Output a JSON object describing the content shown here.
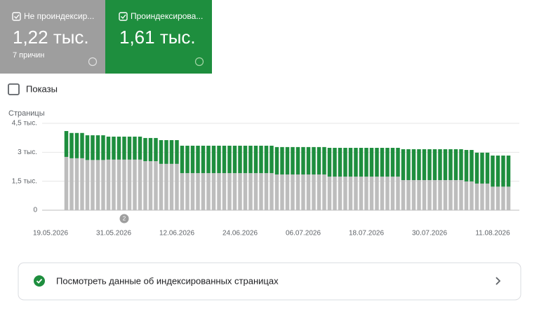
{
  "cards": [
    {
      "value": "1,22 тыс.",
      "note": "7 причин"
    },
    {
      "value": "1,61 тыс."
    }
  ],
  "toggle_label": "Показы",
  "link": "Посмотреть данные об индексированных страницах",
  "chart_data": {
    "type": "stacked-bar",
    "ylabel": "Страницы",
    "categories": [
      "19.05.2026",
      null,
      null,
      null,
      null,
      null,
      null,
      null,
      null,
      null,
      null,
      null,
      "31.05.2026",
      null,
      null,
      null,
      null,
      null,
      null,
      null,
      null,
      null,
      null,
      null,
      "12.06.2026",
      null,
      null,
      null,
      null,
      null,
      null,
      null,
      null,
      null,
      null,
      null,
      "24.06.2026",
      null,
      null,
      null,
      null,
      null,
      null,
      null,
      null,
      null,
      null,
      null,
      "06.07.2026",
      null,
      null,
      null,
      null,
      null,
      null,
      null,
      null,
      null,
      null,
      null,
      "18.07.2026",
      null,
      null,
      null,
      null,
      null,
      null,
      null,
      null,
      null,
      null,
      null,
      "30.07.2026",
      null,
      null,
      null,
      null,
      null,
      null,
      null,
      null,
      null,
      null,
      null,
      "11.08.2026",
      null,
      null,
      null
    ],
    "series": [
      {
        "name": "Не проиндексир...",
        "color": "#bdbdbd",
        "values": [
          null,
          null,
          null,
          2760,
          2690,
          2690,
          2690,
          2600,
          2600,
          2600,
          2600,
          2620,
          2620,
          2620,
          2620,
          2620,
          2620,
          2620,
          2540,
          2540,
          2540,
          2400,
          2400,
          2400,
          2400,
          1920,
          1920,
          1920,
          1920,
          1920,
          1920,
          1920,
          1920,
          1920,
          1920,
          1920,
          1920,
          1920,
          1920,
          1920,
          1920,
          1920,
          1920,
          1850,
          1850,
          1850,
          1850,
          1850,
          1850,
          1850,
          1850,
          1850,
          1850,
          1740,
          1740,
          1740,
          1740,
          1740,
          1740,
          1740,
          1740,
          1740,
          1740,
          1740,
          1740,
          1740,
          1740,
          1560,
          1560,
          1560,
          1560,
          1560,
          1560,
          1560,
          1560,
          1560,
          1560,
          1560,
          1560,
          1490,
          1490,
          1380,
          1380,
          1380,
          1220,
          1220,
          1220,
          1220
        ]
      },
      {
        "name": "Проиндексирова...",
        "color": "#1e8e3e",
        "values": [
          null,
          null,
          null,
          1340,
          1310,
          1310,
          1310,
          1280,
          1280,
          1280,
          1280,
          1190,
          1190,
          1190,
          1190,
          1190,
          1190,
          1190,
          1200,
          1200,
          1200,
          1230,
          1230,
          1230,
          1230,
          1420,
          1420,
          1420,
          1420,
          1420,
          1420,
          1420,
          1420,
          1420,
          1420,
          1420,
          1420,
          1420,
          1420,
          1420,
          1420,
          1420,
          1420,
          1420,
          1420,
          1420,
          1420,
          1420,
          1420,
          1420,
          1420,
          1420,
          1420,
          1490,
          1490,
          1490,
          1490,
          1490,
          1490,
          1490,
          1490,
          1490,
          1490,
          1490,
          1490,
          1490,
          1490,
          1600,
          1600,
          1600,
          1600,
          1600,
          1600,
          1600,
          1600,
          1600,
          1600,
          1600,
          1600,
          1630,
          1630,
          1600,
          1600,
          1600,
          1610,
          1610,
          1610,
          1610
        ]
      }
    ],
    "ylim": [
      0,
      4500
    ],
    "yticks": [
      0,
      {
        "value": 1500,
        "label": "1,5 тыс."
      },
      {
        "value": 3000,
        "label": "3 тыс."
      },
      {
        "value": 4500,
        "label": "4,5 тыс."
      }
    ],
    "grid": true,
    "annotations": [
      {
        "index": 14,
        "label": "2"
      }
    ]
  }
}
